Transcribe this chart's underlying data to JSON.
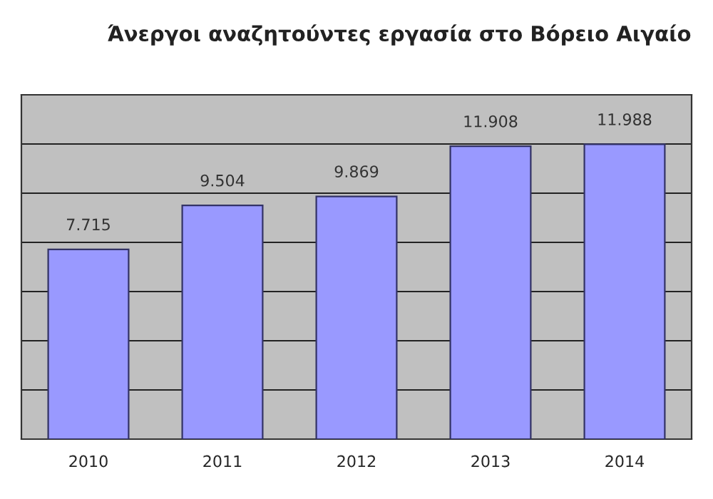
{
  "chart_data": {
    "type": "bar",
    "title": "Άνεργοι αναζητούντες εργασία στο Βόρειο Αιγαίο",
    "categories": [
      "2010",
      "2011",
      "2012",
      "2013",
      "2014"
    ],
    "values": [
      7715,
      9504,
      9869,
      11908,
      11988
    ],
    "value_labels": [
      "7.715",
      "9.504",
      "9.869",
      "11.908",
      "11.988"
    ],
    "color": "#9999ff",
    "ylim": [
      0,
      14000
    ],
    "yticks": [
      {
        "value": 0,
        "label": null
      },
      {
        "value": 2000,
        "label": null
      },
      {
        "value": 4000,
        "label": null
      },
      {
        "value": 6000,
        "label": null
      },
      {
        "value": 8000,
        "label": null
      },
      {
        "value": 10000,
        "label": null
      },
      {
        "value": 12000,
        "label": null
      },
      {
        "value": 14000,
        "label": null
      }
    ],
    "tick_labels": "x",
    "grid": "y"
  }
}
